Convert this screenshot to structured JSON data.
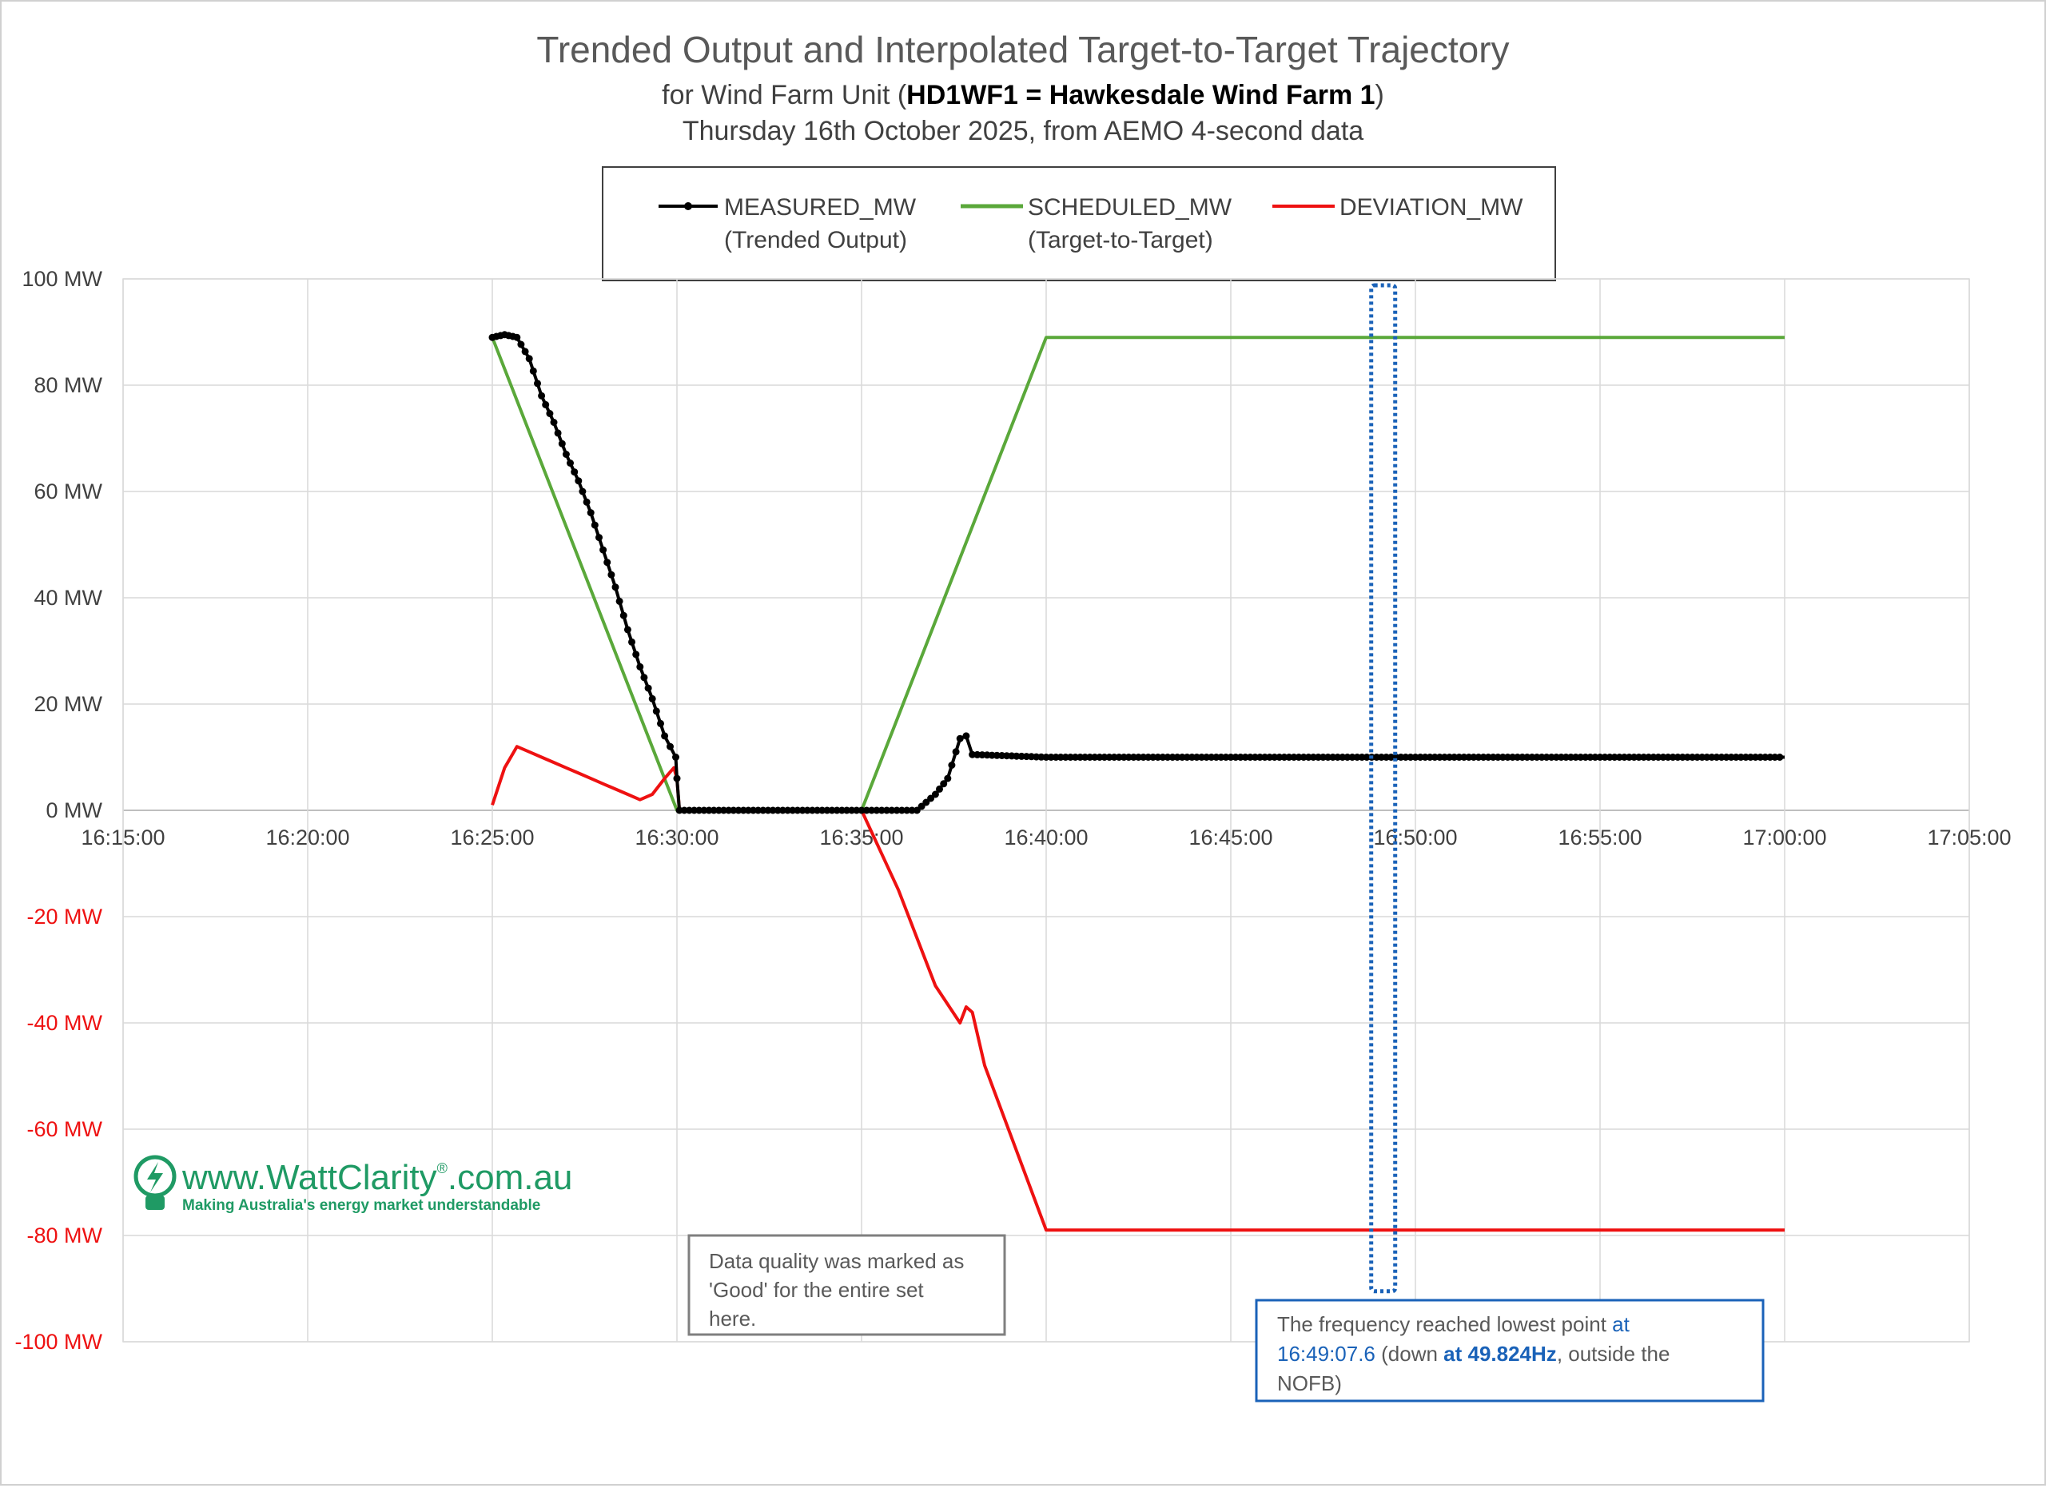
{
  "chart_data": {
    "type": "line",
    "title": "Trended Output and Interpolated Target-to-Target Trajectory",
    "subtitle": {
      "prefix": "for Wind Farm Unit (",
      "bold": "HD1WF1 = Hawkesdale Wind Farm 1",
      "suffix": ")"
    },
    "subtitle2": "Thursday 16th October 2025, from AEMO 4-second data",
    "x_axis": {
      "ticks": [
        "16:15:00",
        "16:20:00",
        "16:25:00",
        "16:30:00",
        "16:35:00",
        "16:40:00",
        "16:45:00",
        "16:50:00",
        "16:55:00",
        "17:00:00",
        "17:05:00"
      ],
      "range": [
        "16:15:00",
        "17:05:00"
      ]
    },
    "y_axis": {
      "ticks": [
        "100 MW",
        "80 MW",
        "60 MW",
        "40 MW",
        "20 MW",
        "0 MW",
        "-20 MW",
        "-40 MW",
        "-60 MW",
        "-80 MW",
        "-100 MW"
      ],
      "range": [
        -100,
        100
      ]
    },
    "grid": true,
    "legend": {
      "placement": "top",
      "items": [
        {
          "name": "MEASURED_MW",
          "sub": "(Trended Output)",
          "color": "#000000",
          "marker": true
        },
        {
          "name": "SCHEDULED_MW",
          "sub": "(Target-to-Target)",
          "color": "#5aa83a",
          "marker": false
        },
        {
          "name": "DEVIATION_MW",
          "sub": "",
          "color": "#ee1111",
          "marker": false
        }
      ]
    },
    "series": [
      {
        "name": "MEASURED_MW",
        "color": "#000000",
        "points": [
          [
            "16:25:00",
            89
          ],
          [
            "16:25:20",
            89.5
          ],
          [
            "16:25:40",
            89
          ],
          [
            "16:26:00",
            85
          ],
          [
            "16:26:20",
            78
          ],
          [
            "16:26:40",
            73
          ],
          [
            "16:27:00",
            67
          ],
          [
            "16:27:20",
            62
          ],
          [
            "16:27:40",
            56
          ],
          [
            "16:28:00",
            49
          ],
          [
            "16:28:20",
            42
          ],
          [
            "16:28:40",
            34
          ],
          [
            "16:29:00",
            27
          ],
          [
            "16:29:20",
            21
          ],
          [
            "16:29:40",
            14
          ],
          [
            "16:29:58",
            10
          ],
          [
            "16:30:00",
            6
          ],
          [
            "16:30:04",
            0
          ],
          [
            "16:35:00",
            0
          ],
          [
            "16:36:30",
            0
          ],
          [
            "16:37:00",
            3
          ],
          [
            "16:37:20",
            6
          ],
          [
            "16:37:40",
            13.5
          ],
          [
            "16:37:50",
            14
          ],
          [
            "16:38:00",
            10.5
          ],
          [
            "16:40:00",
            10
          ],
          [
            "16:45:00",
            10
          ],
          [
            "16:50:00",
            10
          ],
          [
            "16:55:00",
            10
          ],
          [
            "17:00:00",
            10
          ]
        ]
      },
      {
        "name": "SCHEDULED_MW",
        "color": "#5aa83a",
        "points": [
          [
            "16:25:00",
            89
          ],
          [
            "16:30:00",
            0
          ],
          [
            "16:35:00",
            0
          ],
          [
            "16:40:00",
            89
          ],
          [
            "17:00:00",
            89
          ]
        ]
      },
      {
        "name": "DEVIATION_MW",
        "color": "#ee1111",
        "points": [
          [
            "16:25:00",
            1
          ],
          [
            "16:25:20",
            8
          ],
          [
            "16:25:40",
            12
          ],
          [
            "16:26:00",
            11
          ],
          [
            "16:26:20",
            10
          ],
          [
            "16:26:40",
            9
          ],
          [
            "16:27:00",
            8
          ],
          [
            "16:27:20",
            7
          ],
          [
            "16:27:40",
            6
          ],
          [
            "16:28:00",
            5
          ],
          [
            "16:28:20",
            4
          ],
          [
            "16:28:40",
            3
          ],
          [
            "16:29:00",
            2
          ],
          [
            "16:29:20",
            3
          ],
          [
            "16:29:40",
            6
          ],
          [
            "16:29:55",
            8
          ],
          [
            "16:30:00",
            6
          ],
          [
            "16:30:04",
            0
          ],
          [
            "16:35:00",
            0
          ],
          [
            "16:36:00",
            -15
          ],
          [
            "16:37:00",
            -33
          ],
          [
            "16:37:40",
            -40
          ],
          [
            "16:37:50",
            -37
          ],
          [
            "16:38:00",
            -38
          ],
          [
            "16:38:20",
            -48
          ],
          [
            "16:40:00",
            -79
          ],
          [
            "16:45:00",
            -79
          ],
          [
            "16:50:00",
            -79
          ],
          [
            "16:55:00",
            -79
          ],
          [
            "17:00:00",
            -79
          ]
        ]
      }
    ]
  },
  "annotations": {
    "data_quality": [
      "Data quality was marked as",
      "'Good' for the entire set",
      "here."
    ],
    "frequency": {
      "line1_text": "The frequency reached lowest point ",
      "line1_blue": "at",
      "line2_blue": "16:49:07.6",
      "line2_text": " (down ",
      "line2_bold_blue": "at 49.824Hz",
      "line2_tail": ", outside the",
      "line3": "NOFB)"
    },
    "highlight_time": "16:49:07.6"
  },
  "logo": {
    "site": "www.WattClarity",
    "reg": "®",
    "domain": ".com.au",
    "tagline": "Making Australia's energy market understandable",
    "color": "#1f9a64"
  },
  "colors": {
    "grid": "#d9d9d9",
    "axis_text": "#404040",
    "negative_text": "#ee1111",
    "annotation_blue": "#1a62b8"
  }
}
